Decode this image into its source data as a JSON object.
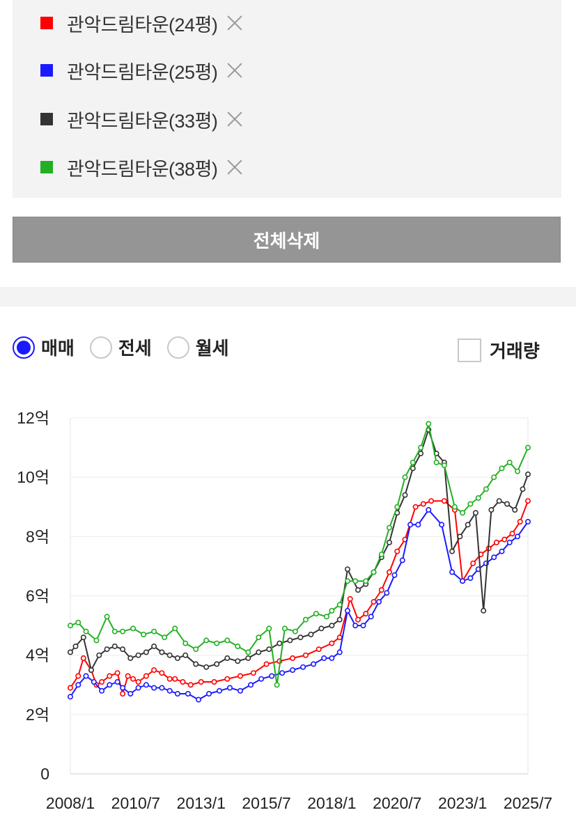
{
  "compare_list": {
    "items": [
      {
        "label": "관악드림타운(24평)",
        "color": "#ff0000"
      },
      {
        "label": "관악드림타운(25평)",
        "color": "#1a1aff"
      },
      {
        "label": "관악드림타운(33평)",
        "color": "#333333"
      },
      {
        "label": "관악드림타운(38평)",
        "color": "#22b022"
      }
    ],
    "delete_all_label": "전체삭제"
  },
  "controls": {
    "radios": [
      {
        "label": "매매",
        "checked": true
      },
      {
        "label": "전세",
        "checked": false
      },
      {
        "label": "월세",
        "checked": false
      }
    ],
    "volume_label": "거래량",
    "volume_checked": false
  },
  "chart_data": {
    "type": "line",
    "x_unit": "year",
    "xlim": [
      2008.0,
      2025.5
    ],
    "ylim": [
      0,
      12
    ],
    "y_ticks": [
      0,
      2,
      4,
      6,
      8,
      10,
      12
    ],
    "y_tick_labels": [
      "0",
      "2억",
      "4억",
      "6억",
      "8억",
      "10억",
      "12억"
    ],
    "x_ticks": [
      2008.0,
      2010.5,
      2013.0,
      2015.5,
      2018.0,
      2020.5,
      2023.0,
      2025.5
    ],
    "x_tick_labels": [
      "2008/1",
      "2010/7",
      "2013/1",
      "2015/7",
      "2018/1",
      "2020/7",
      "2023/1",
      "2025/7"
    ],
    "grid": true,
    "series": [
      {
        "name": "관악드림타운(24평)",
        "color": "#ff0000",
        "x": [
          2008.0,
          2008.3,
          2008.5,
          2008.8,
          2009.0,
          2009.2,
          2009.5,
          2009.8,
          2010.0,
          2010.2,
          2010.4,
          2010.6,
          2010.9,
          2011.2,
          2011.5,
          2011.8,
          2012.0,
          2012.3,
          2012.6,
          2013.0,
          2013.5,
          2014.0,
          2014.5,
          2015.0,
          2015.5,
          2016.0,
          2016.5,
          2017.0,
          2017.5,
          2018.0,
          2018.3,
          2018.7,
          2019.0,
          2019.3,
          2019.6,
          2019.9,
          2020.2,
          2020.5,
          2020.8,
          2021.2,
          2021.5,
          2021.8,
          2022.3,
          2022.7,
          2023.0,
          2023.4,
          2023.7,
          2024.0,
          2024.3,
          2024.6,
          2024.9,
          2025.2,
          2025.5
        ],
        "values": [
          2.9,
          3.3,
          3.9,
          3.5,
          3.0,
          3.1,
          3.3,
          3.4,
          2.7,
          3.3,
          3.2,
          3.1,
          3.3,
          3.5,
          3.4,
          3.2,
          3.2,
          3.1,
          3.0,
          3.1,
          3.1,
          3.2,
          3.3,
          3.4,
          3.7,
          3.8,
          3.9,
          4.0,
          4.2,
          4.4,
          4.6,
          5.9,
          5.2,
          5.4,
          5.8,
          6.2,
          6.8,
          7.5,
          7.9,
          9.0,
          9.1,
          9.2,
          9.2,
          8.9,
          6.5,
          7.1,
          7.4,
          7.6,
          7.8,
          7.9,
          8.1,
          8.5,
          9.2
        ]
      },
      {
        "name": "관악드림타운(25평)",
        "color": "#1a1aff",
        "x": [
          2008.0,
          2008.3,
          2008.6,
          2008.9,
          2009.2,
          2009.5,
          2009.8,
          2010.0,
          2010.3,
          2010.6,
          2010.9,
          2011.2,
          2011.5,
          2011.8,
          2012.1,
          2012.5,
          2012.9,
          2013.3,
          2013.7,
          2014.1,
          2014.5,
          2014.9,
          2015.3,
          2015.7,
          2016.1,
          2016.5,
          2016.9,
          2017.3,
          2017.7,
          2018.0,
          2018.3,
          2018.6,
          2018.9,
          2019.2,
          2019.5,
          2019.8,
          2020.1,
          2020.4,
          2020.7,
          2021.0,
          2021.3,
          2021.7,
          2022.2,
          2022.6,
          2023.0,
          2023.3,
          2023.6,
          2023.9,
          2024.2,
          2024.5,
          2024.8,
          2025.1,
          2025.5
        ],
        "values": [
          2.6,
          3.0,
          3.3,
          3.1,
          2.8,
          3.0,
          3.1,
          2.9,
          2.7,
          2.9,
          3.0,
          2.9,
          2.9,
          2.8,
          2.7,
          2.7,
          2.5,
          2.7,
          2.8,
          2.9,
          2.8,
          3.0,
          3.2,
          3.3,
          3.4,
          3.5,
          3.6,
          3.7,
          3.9,
          3.9,
          4.1,
          5.5,
          5.0,
          5.0,
          5.3,
          5.8,
          6.1,
          6.7,
          7.2,
          8.4,
          8.4,
          8.9,
          8.4,
          6.8,
          6.5,
          6.6,
          6.9,
          7.1,
          7.3,
          7.5,
          7.8,
          8.0,
          8.5
        ]
      },
      {
        "name": "관악드림타운(33평)",
        "color": "#333333",
        "x": [
          2008.0,
          2008.2,
          2008.5,
          2008.8,
          2009.1,
          2009.4,
          2009.7,
          2010.0,
          2010.3,
          2010.6,
          2010.9,
          2011.2,
          2011.5,
          2011.8,
          2012.1,
          2012.4,
          2012.8,
          2013.2,
          2013.6,
          2014.0,
          2014.4,
          2014.8,
          2015.2,
          2015.6,
          2016.0,
          2016.4,
          2016.8,
          2017.2,
          2017.6,
          2018.0,
          2018.3,
          2018.6,
          2019.0,
          2019.3,
          2019.6,
          2019.9,
          2020.2,
          2020.5,
          2020.8,
          2021.1,
          2021.4,
          2021.7,
          2022.0,
          2022.3,
          2022.6,
          2022.9,
          2023.2,
          2023.5,
          2023.8,
          2024.1,
          2024.4,
          2024.7,
          2025.0,
          2025.3,
          2025.5
        ],
        "values": [
          4.1,
          4.3,
          4.6,
          3.5,
          4.0,
          4.2,
          4.3,
          4.2,
          3.9,
          4.0,
          4.1,
          4.3,
          4.1,
          4.0,
          3.9,
          4.0,
          3.7,
          3.6,
          3.7,
          3.9,
          3.8,
          3.9,
          4.1,
          4.2,
          4.4,
          4.5,
          4.6,
          4.7,
          4.9,
          5.0,
          5.2,
          6.9,
          6.2,
          6.4,
          6.8,
          7.3,
          7.8,
          8.8,
          9.4,
          10.3,
          10.8,
          11.6,
          10.8,
          10.5,
          7.5,
          8.0,
          8.4,
          8.8,
          5.5,
          8.9,
          9.2,
          9.1,
          8.9,
          9.6,
          10.1
        ]
      },
      {
        "name": "관악드림타운(38평)",
        "color": "#22b022",
        "x": [
          2008.0,
          2008.3,
          2008.6,
          2009.0,
          2009.4,
          2009.7,
          2010.0,
          2010.4,
          2010.8,
          2011.2,
          2011.6,
          2012.0,
          2012.4,
          2012.8,
          2013.2,
          2013.6,
          2014.0,
          2014.4,
          2014.8,
          2015.2,
          2015.6,
          2015.9,
          2016.2,
          2016.6,
          2017.0,
          2017.4,
          2017.8,
          2018.0,
          2018.3,
          2018.6,
          2018.9,
          2019.3,
          2019.6,
          2019.9,
          2020.2,
          2020.5,
          2020.8,
          2021.1,
          2021.4,
          2021.7,
          2022.0,
          2022.3,
          2022.7,
          2023.0,
          2023.3,
          2023.6,
          2023.9,
          2024.2,
          2024.5,
          2024.8,
          2025.1,
          2025.5
        ],
        "values": [
          5.0,
          5.1,
          4.8,
          4.5,
          5.3,
          4.8,
          4.8,
          4.9,
          4.7,
          4.8,
          4.6,
          4.9,
          4.4,
          4.2,
          4.5,
          4.4,
          4.5,
          4.3,
          4.1,
          4.6,
          4.9,
          3.0,
          4.9,
          4.8,
          5.2,
          5.4,
          5.3,
          5.5,
          5.7,
          6.5,
          6.5,
          6.5,
          6.8,
          7.4,
          8.3,
          9.0,
          10.0,
          10.5,
          11.0,
          11.8,
          10.5,
          10.4,
          9.0,
          8.8,
          9.1,
          9.3,
          9.6,
          10.0,
          10.3,
          10.5,
          10.2,
          11.0
        ]
      }
    ]
  }
}
